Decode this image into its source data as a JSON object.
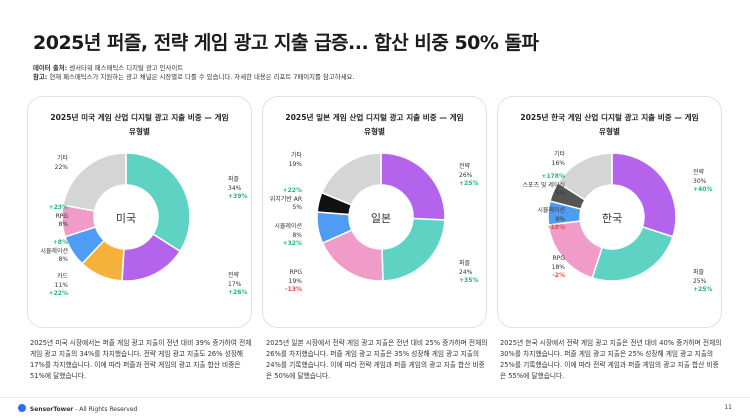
{
  "header": {
    "title": "2025년 퍼즐, 전략 게임 광고 지출 급증... 합산 비중 50% 돌파",
    "source_label": "데이터 출처:",
    "source_value": "센서타워 패스매틱스 디지털 광고 인사이트",
    "note_label": "참고:",
    "note_value": "현재 패스매틱스가 지원하는 광고 채널은 시장별로 다를 수 있습니다. 자세한 내용은 리포트 7페이지를 참고하세요."
  },
  "colors": {
    "puzzle": "#5ed3c4",
    "strategy": "#b464ec",
    "card": "#f4b23a",
    "simulation": "#4f9cf5",
    "rpg": "#f19bc8",
    "other": "#d5d5d5",
    "location_ar": "#111111",
    "sports_racing": "#555555",
    "increase": "#1fb87a",
    "decrease": "#e74c3c"
  },
  "chart_data": [
    {
      "type": "pie",
      "title": "2025년 미국 게임 산업 디지털 광고 지출 비중 — 게임 유형별",
      "center_label": "미국",
      "slices": [
        {
          "label": "퍼즐",
          "value": 34,
          "change": "+39%",
          "color_key": "puzzle"
        },
        {
          "label": "전략",
          "value": 17,
          "change": "+26%",
          "color_key": "strategy"
        },
        {
          "label": "카드",
          "value": 11,
          "change": "+22%",
          "color_key": "card"
        },
        {
          "label": "시뮬레이션",
          "value": 8,
          "change": "+8%",
          "color_key": "simulation"
        },
        {
          "label": "RPG",
          "value": 8,
          "change": "+23%",
          "color_key": "rpg"
        },
        {
          "label": "기타",
          "value": 22,
          "change": "",
          "color_key": "other"
        }
      ]
    },
    {
      "type": "pie",
      "title": "2025년 일본 게임 산업 디지털 광고 지출 비중 — 게임 유형별",
      "center_label": "일본",
      "slices": [
        {
          "label": "전략",
          "value": 26,
          "change": "+25%",
          "color_key": "strategy"
        },
        {
          "label": "퍼즐",
          "value": 24,
          "change": "+35%",
          "color_key": "puzzle"
        },
        {
          "label": "RPG",
          "value": 19,
          "change": "-13%",
          "color_key": "rpg"
        },
        {
          "label": "시뮬레이션",
          "value": 8,
          "change": "+32%",
          "color_key": "simulation"
        },
        {
          "label": "위치기반 AR",
          "value": 5,
          "change": "+22%",
          "color_key": "location_ar"
        },
        {
          "label": "기타",
          "value": 19,
          "change": "",
          "color_key": "other"
        }
      ]
    },
    {
      "type": "pie",
      "title": "2025년 한국 게임 산업 디지털 광고 지출 비중 — 게임 유형별",
      "center_label": "한국",
      "slices": [
        {
          "label": "전략",
          "value": 30,
          "change": "+40%",
          "color_key": "strategy"
        },
        {
          "label": "퍼즐",
          "value": 25,
          "change": "+25%",
          "color_key": "puzzle"
        },
        {
          "label": "RPG",
          "value": 18,
          "change": "-2%",
          "color_key": "rpg"
        },
        {
          "label": "시뮬레이션",
          "value": 6,
          "change": "-18%",
          "color_key": "simulation"
        },
        {
          "label": "스포츠 및 레이싱",
          "value": 5,
          "change": "+178%",
          "color_key": "sports_racing"
        },
        {
          "label": "기타",
          "value": 16,
          "change": "",
          "color_key": "other"
        }
      ]
    }
  ],
  "descriptions": [
    "2025년 미국 시장에서는 퍼즐 게임 광고 지출이 전년 대비 39% 증가하여 전체 게임 광고 지출의 34%를 차지했습니다. 전략 게임 광고 지출도 26% 성장해 17%를 차지했습니다. 이에 따라 퍼즐과 전략 게임의 광고 지출 합산 비중은 51%에 달했습니다.",
    "2025년 일본 시장에서 전략 게임 광고 지출은 전년 대비 25% 증가하며 전체의 26%를 차지했습니다. 퍼즐 게임 광고 지출은 35% 성장해 게임 광고 지출의 24%를 기록했습니다. 이에 따라 전략 게임과 퍼즐 게임의 광고 지출 합산 비중은 50%에 달했습니다.",
    "2025년 한국 시장에서 전략 게임 광고 지출은 전년 대비 40% 증가하며 전체의 30%를 차지했습니다. 퍼즐 게임 광고 지출은 25% 성장해 게임 광고 지출의 25%를 기록했습니다. 이에 따라 전략 게임과 퍼즐 게임의 광고 지출 합산 비중은 55%에 달했습니다."
  ],
  "footer": {
    "brand": "SensorTower",
    "rights": "- All Rights Reserved",
    "page": "11"
  }
}
